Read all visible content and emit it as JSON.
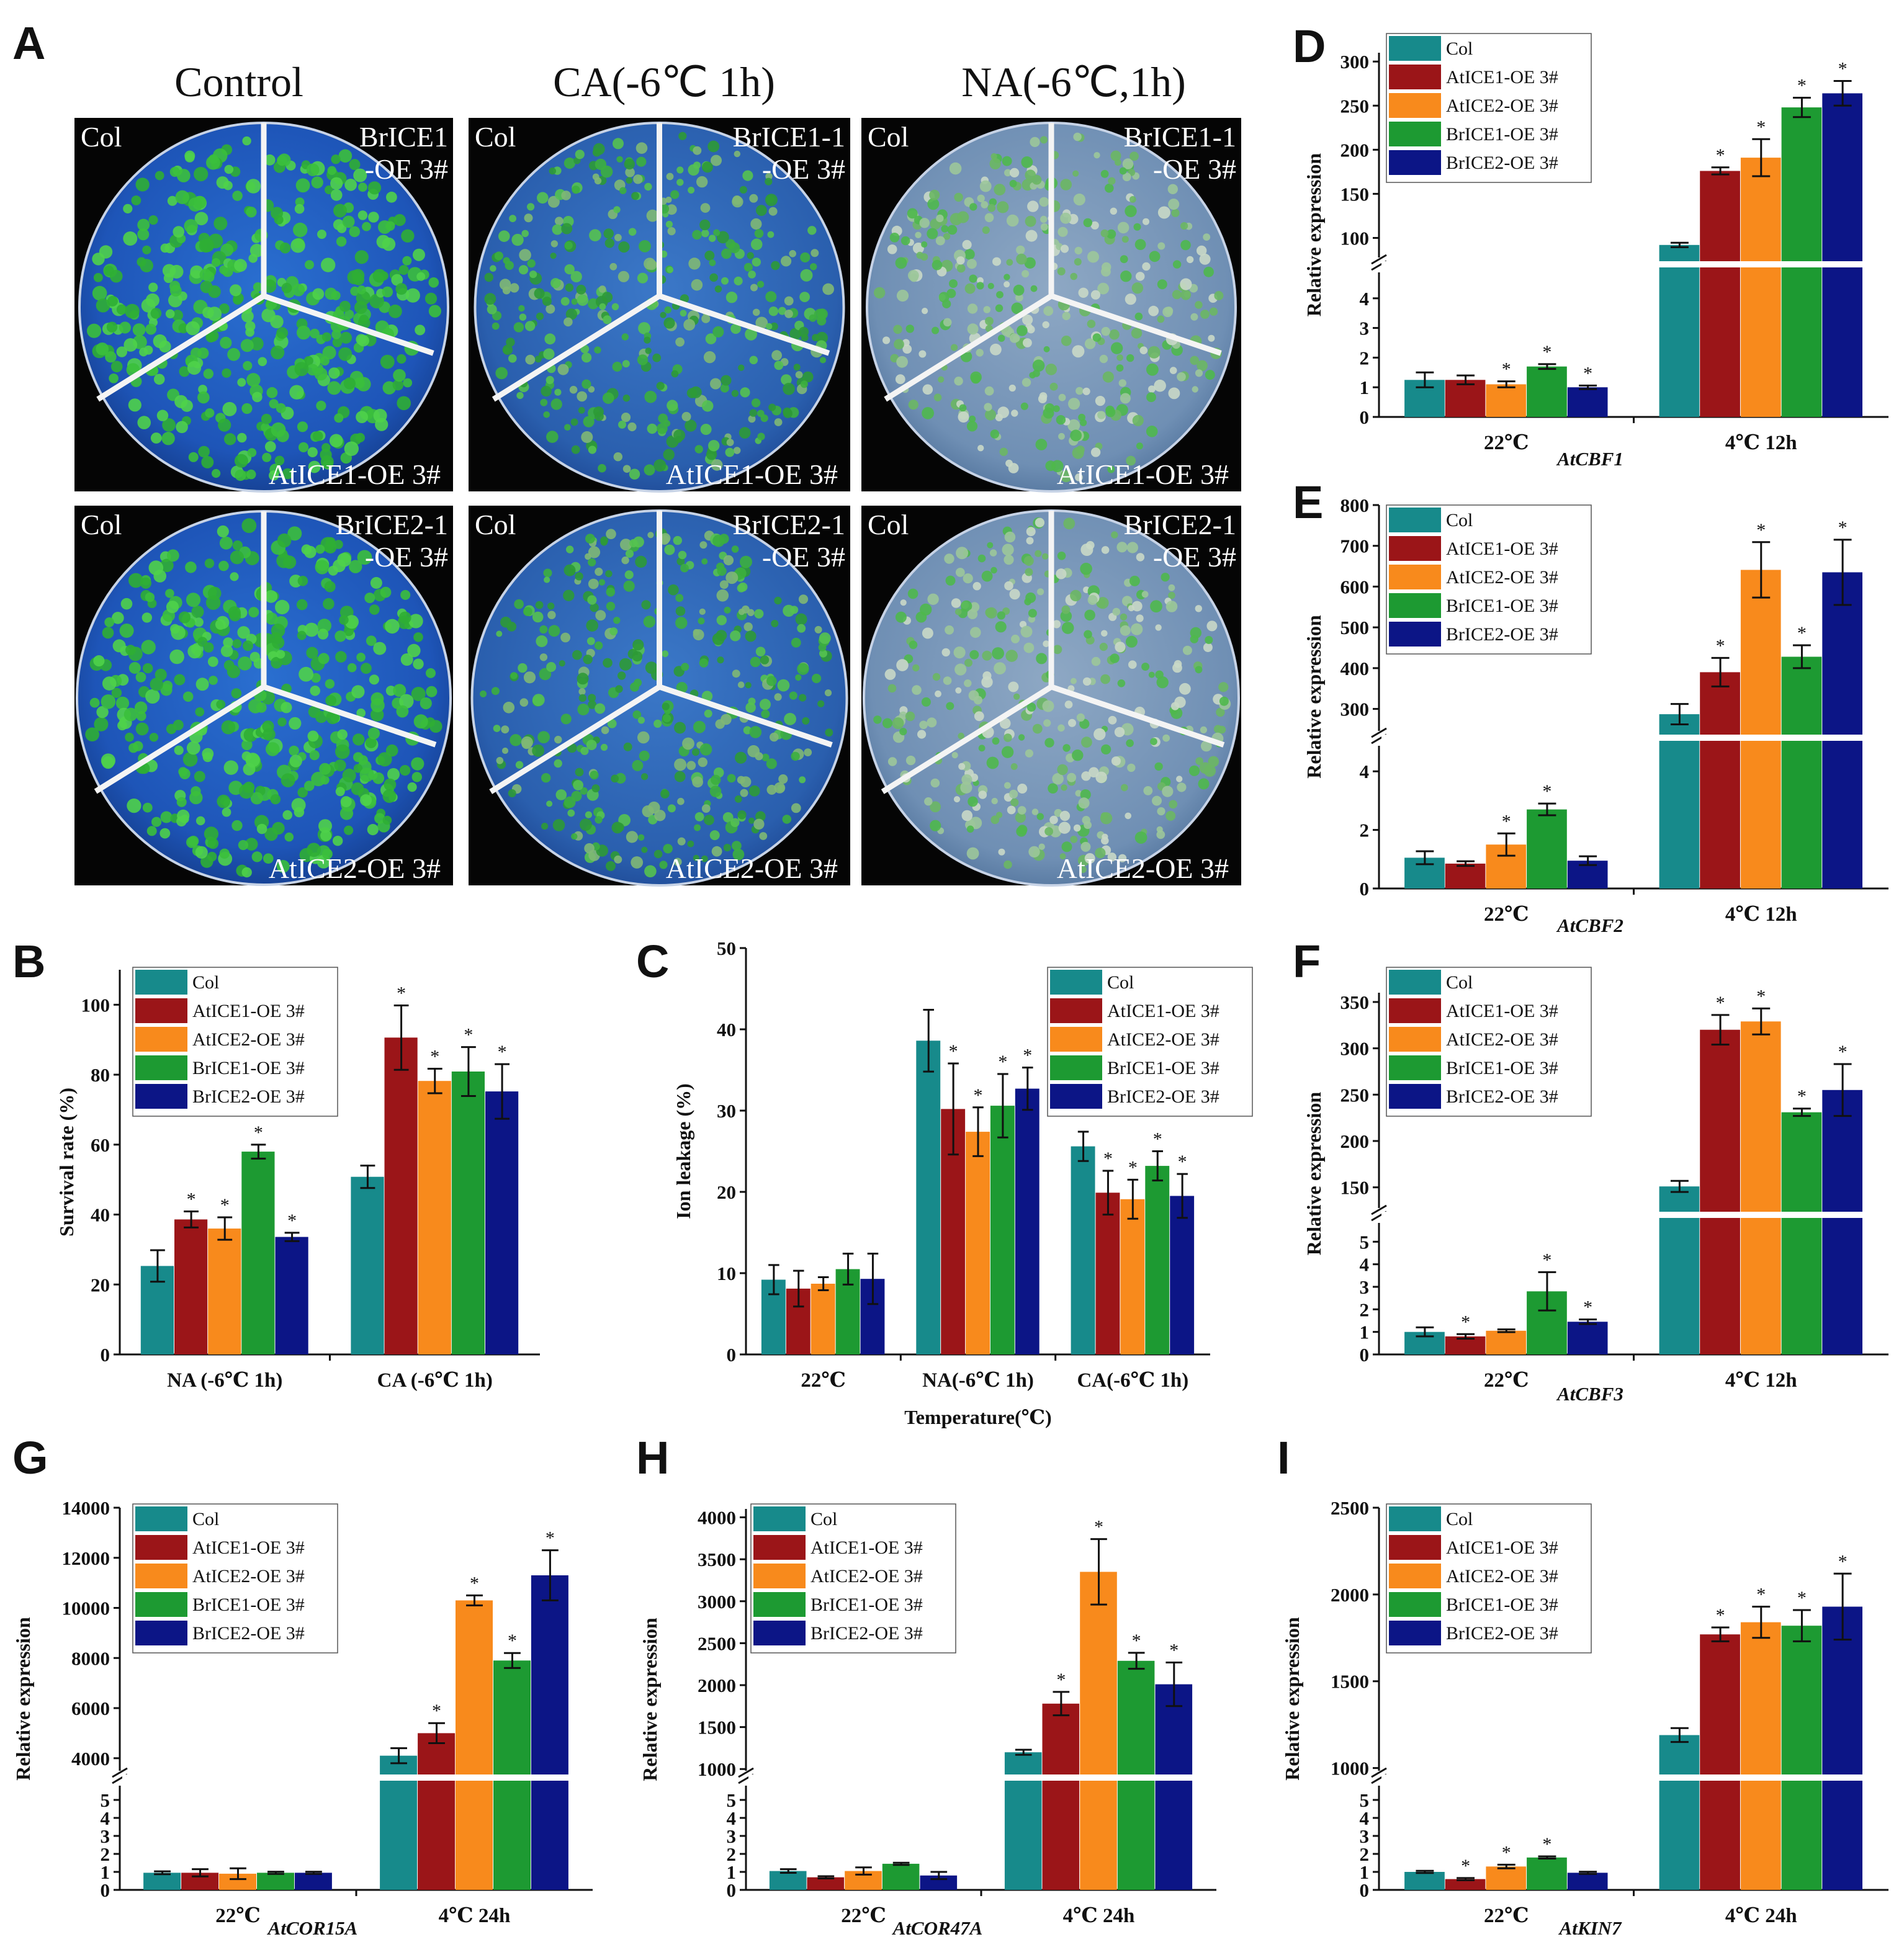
{
  "colors": {
    "Col": "#178a8b",
    "AtICE1-OE 3#": "#9b1518",
    "AtICE2-OE 3#": "#f88a1c",
    "BrICE1-OE 3#": "#1d9a32",
    "BrICE2-OE 3#": "#0c1586"
  },
  "photos": {
    "letter": "A",
    "titles": [
      "Control",
      "CA(-6℃ 1h)",
      "NA(-6℃,1h)"
    ],
    "plates": [
      {
        "tl": "Col",
        "tr1": "BrICE1",
        "tr2": "-OE 3#",
        "bottom": "AtICE1-OE 3#",
        "style": "control"
      },
      {
        "tl": "Col",
        "tr1": "BrICE1-1",
        "tr2": "-OE 3#",
        "bottom": "AtICE1-OE 3#",
        "style": "ca"
      },
      {
        "tl": "Col",
        "tr1": "BrICE1-1",
        "tr2": "-OE 3#",
        "bottom": "AtICE1-OE 3#",
        "style": "na"
      },
      {
        "tl": "Col",
        "tr1": "BrICE2-1",
        "tr2": "-OE 3#",
        "bottom": "AtICE2-OE 3#",
        "style": "control"
      },
      {
        "tl": "Col",
        "tr1": "BrICE2-1",
        "tr2": "-OE 3#",
        "bottom": "AtICE2-OE 3#",
        "style": "ca"
      },
      {
        "tl": "Col",
        "tr1": "BrICE2-1",
        "tr2": "-OE 3#",
        "bottom": "AtICE2-OE 3#",
        "style": "na"
      }
    ]
  },
  "chart_data": [
    {
      "panel": "B",
      "type": "bar",
      "ylabel": "Survival rate (%)",
      "xlabel": "",
      "categories": [
        "NA (-6℃ 1h)",
        "CA (-6℃ 1h)"
      ],
      "ylim": [
        0,
        110
      ],
      "yticks": [
        0,
        20,
        40,
        60,
        80,
        100
      ],
      "series": [
        {
          "name": "Col",
          "values": [
            25.3,
            50.8
          ],
          "errors": [
            4.5,
            3.2
          ],
          "sig": [
            false,
            false
          ]
        },
        {
          "name": "AtICE1-OE 3#",
          "values": [
            38.6,
            90.6
          ],
          "errors": [
            2.3,
            9.2
          ],
          "sig": [
            true,
            true
          ]
        },
        {
          "name": "AtICE2-OE 3#",
          "values": [
            36.0,
            78.2
          ],
          "errors": [
            3.2,
            3.5
          ],
          "sig": [
            true,
            true
          ]
        },
        {
          "name": "BrICE1-OE 3#",
          "values": [
            58.0,
            80.9
          ],
          "errors": [
            2.0,
            7.0
          ],
          "sig": [
            true,
            true
          ]
        },
        {
          "name": "BrICE2-OE 3#",
          "values": [
            33.6,
            75.2
          ],
          "errors": [
            1.2,
            7.8
          ],
          "sig": [
            true,
            true
          ]
        }
      ]
    },
    {
      "panel": "C",
      "type": "bar",
      "ylabel": "Ion leakage (%)",
      "xlabel": "Temperature(℃)",
      "categories": [
        "22℃",
        "NA(-6℃ 1h)",
        "CA(-6℃ 1h)"
      ],
      "ylim": [
        0,
        50
      ],
      "yticks": [
        0,
        10,
        20,
        30,
        40,
        50
      ],
      "series": [
        {
          "name": "Col",
          "values": [
            9.2,
            38.6,
            25.6
          ],
          "errors": [
            1.8,
            3.8,
            1.8
          ],
          "sig": [
            false,
            false,
            false
          ]
        },
        {
          "name": "AtICE1-OE 3#",
          "values": [
            8.1,
            30.2,
            19.9
          ],
          "errors": [
            2.2,
            5.6,
            2.7
          ],
          "sig": [
            false,
            true,
            true
          ]
        },
        {
          "name": "AtICE2-OE 3#",
          "values": [
            8.7,
            27.4,
            19.1
          ],
          "errors": [
            0.8,
            3.0,
            2.4
          ],
          "sig": [
            false,
            true,
            true
          ]
        },
        {
          "name": "BrICE1-OE 3#",
          "values": [
            10.5,
            30.6,
            23.2
          ],
          "errors": [
            1.9,
            3.9,
            1.8
          ],
          "sig": [
            false,
            true,
            true
          ]
        },
        {
          "name": "BrICE2-OE 3#",
          "values": [
            9.3,
            32.7,
            19.5
          ],
          "errors": [
            3.1,
            2.6,
            2.7
          ],
          "sig": [
            false,
            true,
            true
          ]
        }
      ]
    },
    {
      "panel": "D",
      "type": "bar",
      "gene": "AtCBF1",
      "ylabel": "Relative expression",
      "xlabel": "",
      "categories": [
        "22℃",
        "4℃ 12h"
      ],
      "lower_ylim": [
        0,
        5
      ],
      "lower_ticks": [
        0,
        1,
        2,
        3,
        4
      ],
      "upper_ylim": [
        75,
        310
      ],
      "upper_ticks": [
        100,
        150,
        200,
        250,
        300
      ],
      "series": [
        {
          "name": "Col",
          "values": [
            1.25,
            92
          ],
          "errors": [
            0.25,
            2.5
          ],
          "sig": [
            false,
            false
          ]
        },
        {
          "name": "AtICE1-OE 3#",
          "values": [
            1.25,
            176
          ],
          "errors": [
            0.15,
            4
          ],
          "sig": [
            false,
            true
          ]
        },
        {
          "name": "AtICE2-OE 3#",
          "values": [
            1.1,
            191
          ],
          "errors": [
            0.1,
            21
          ],
          "sig": [
            true,
            true
          ]
        },
        {
          "name": "BrICE1-OE 3#",
          "values": [
            1.7,
            248
          ],
          "errors": [
            0.08,
            11
          ],
          "sig": [
            true,
            true
          ]
        },
        {
          "name": "BrICE2-OE 3#",
          "values": [
            1.0,
            264
          ],
          "errors": [
            0.06,
            14
          ],
          "sig": [
            true,
            true
          ]
        }
      ]
    },
    {
      "panel": "E",
      "type": "bar",
      "gene": "AtCBF2",
      "ylabel": "Relative expression",
      "xlabel": "",
      "categories": [
        "22℃",
        "4℃ 12h"
      ],
      "lower_ylim": [
        0,
        5
      ],
      "lower_ticks": [
        0,
        2,
        4
      ],
      "upper_ylim": [
        240,
        800
      ],
      "upper_ticks": [
        300,
        400,
        500,
        600,
        700,
        800
      ],
      "series": [
        {
          "name": "Col",
          "values": [
            1.05,
            287
          ],
          "errors": [
            0.22,
            25
          ],
          "sig": [
            false,
            false
          ]
        },
        {
          "name": "AtICE1-OE 3#",
          "values": [
            0.85,
            390
          ],
          "errors": [
            0.08,
            35
          ],
          "sig": [
            false,
            true
          ]
        },
        {
          "name": "AtICE2-OE 3#",
          "values": [
            1.5,
            641
          ],
          "errors": [
            0.38,
            68
          ],
          "sig": [
            true,
            true
          ]
        },
        {
          "name": "BrICE1-OE 3#",
          "values": [
            2.7,
            428
          ],
          "errors": [
            0.2,
            28
          ],
          "sig": [
            true,
            true
          ]
        },
        {
          "name": "BrICE2-OE 3#",
          "values": [
            0.95,
            635
          ],
          "errors": [
            0.15,
            80
          ],
          "sig": [
            false,
            true
          ]
        }
      ]
    },
    {
      "panel": "F",
      "type": "bar",
      "gene": "AtCBF3",
      "ylabel": "Relative expression",
      "xlabel": "",
      "categories": [
        "22℃",
        "4℃ 12h"
      ],
      "lower_ylim": [
        0,
        6
      ],
      "lower_ticks": [
        0,
        1,
        2,
        3,
        4,
        5
      ],
      "upper_ylim": [
        125,
        360
      ],
      "upper_ticks": [
        150,
        200,
        250,
        300,
        350
      ],
      "series": [
        {
          "name": "Col",
          "values": [
            1.0,
            151
          ],
          "errors": [
            0.2,
            6
          ],
          "sig": [
            false,
            false
          ]
        },
        {
          "name": "AtICE1-OE 3#",
          "values": [
            0.8,
            320
          ],
          "errors": [
            0.1,
            16
          ],
          "sig": [
            true,
            true
          ]
        },
        {
          "name": "AtICE2-OE 3#",
          "values": [
            1.05,
            329
          ],
          "errors": [
            0.06,
            14
          ],
          "sig": [
            false,
            true
          ]
        },
        {
          "name": "BrICE1-OE 3#",
          "values": [
            2.8,
            231
          ],
          "errors": [
            0.85,
            4
          ],
          "sig": [
            true,
            true
          ]
        },
        {
          "name": "BrICE2-OE 3#",
          "values": [
            1.45,
            255
          ],
          "errors": [
            0.1,
            28
          ],
          "sig": [
            true,
            true
          ]
        }
      ]
    },
    {
      "panel": "G",
      "type": "bar",
      "gene": "AtCOR15A",
      "ylabel": "Relative expression",
      "xlabel": "",
      "categories": [
        "22℃",
        "4℃ 24h"
      ],
      "lower_ylim": [
        0,
        6
      ],
      "lower_ticks": [
        0,
        1,
        2,
        3,
        4,
        5
      ],
      "upper_ylim": [
        3400,
        14000
      ],
      "upper_ticks": [
        4000,
        6000,
        8000,
        10000,
        12000,
        14000
      ],
      "series": [
        {
          "name": "Col",
          "values": [
            0.95,
            4100
          ],
          "errors": [
            0.08,
            300
          ],
          "sig": [
            false,
            false
          ]
        },
        {
          "name": "AtICE1-OE 3#",
          "values": [
            0.95,
            5000
          ],
          "errors": [
            0.2,
            400
          ],
          "sig": [
            false,
            true
          ]
        },
        {
          "name": "AtICE2-OE 3#",
          "values": [
            0.9,
            10300
          ],
          "errors": [
            0.3,
            200
          ],
          "sig": [
            false,
            true
          ]
        },
        {
          "name": "BrICE1-OE 3#",
          "values": [
            0.95,
            7900
          ],
          "errors": [
            0.06,
            300
          ],
          "sig": [
            false,
            true
          ]
        },
        {
          "name": "BrICE2-OE 3#",
          "values": [
            0.95,
            11300
          ],
          "errors": [
            0.06,
            1000
          ],
          "sig": [
            false,
            true
          ]
        }
      ]
    },
    {
      "panel": "H",
      "type": "bar",
      "gene": "AtCOR47A",
      "ylabel": "Relative expression",
      "xlabel": "",
      "categories": [
        "22℃",
        "4℃ 24h"
      ],
      "lower_ylim": [
        0,
        6
      ],
      "lower_ticks": [
        0,
        1,
        2,
        3,
        4,
        5
      ],
      "upper_ylim": [
        950,
        4100
      ],
      "upper_ticks": [
        1000,
        1500,
        2000,
        2500,
        3000,
        3500,
        4000
      ],
      "series": [
        {
          "name": "Col",
          "values": [
            1.05,
            1200
          ],
          "errors": [
            0.1,
            30
          ],
          "sig": [
            false,
            false
          ]
        },
        {
          "name": "AtICE1-OE 3#",
          "values": [
            0.7,
            1780
          ],
          "errors": [
            0.06,
            140
          ],
          "sig": [
            false,
            true
          ]
        },
        {
          "name": "AtICE2-OE 3#",
          "values": [
            1.05,
            3350
          ],
          "errors": [
            0.2,
            390
          ],
          "sig": [
            false,
            true
          ]
        },
        {
          "name": "BrICE1-OE 3#",
          "values": [
            1.45,
            2290
          ],
          "errors": [
            0.06,
            95
          ],
          "sig": [
            false,
            true
          ]
        },
        {
          "name": "BrICE2-OE 3#",
          "values": [
            0.8,
            2010
          ],
          "errors": [
            0.2,
            260
          ],
          "sig": [
            false,
            true
          ]
        }
      ]
    },
    {
      "panel": "I",
      "type": "bar",
      "gene": "AtKIN7",
      "ylabel": "Relative expression",
      "xlabel": "",
      "categories": [
        "22℃",
        "4℃ 24h"
      ],
      "lower_ylim": [
        0,
        6
      ],
      "lower_ticks": [
        0,
        1,
        2,
        3,
        4,
        5
      ],
      "upper_ylim": [
        970,
        2500
      ],
      "upper_ticks": [
        1000,
        1500,
        2000,
        2500
      ],
      "series": [
        {
          "name": "Col",
          "values": [
            1.0,
            1190
          ],
          "errors": [
            0.06,
            40
          ],
          "sig": [
            false,
            false
          ]
        },
        {
          "name": "AtICE1-OE 3#",
          "values": [
            0.6,
            1770
          ],
          "errors": [
            0.06,
            40
          ],
          "sig": [
            true,
            true
          ]
        },
        {
          "name": "AtICE2-OE 3#",
          "values": [
            1.3,
            1840
          ],
          "errors": [
            0.1,
            90
          ],
          "sig": [
            true,
            true
          ]
        },
        {
          "name": "BrICE1-OE 3#",
          "values": [
            1.8,
            1820
          ],
          "errors": [
            0.06,
            90
          ],
          "sig": [
            true,
            true
          ]
        },
        {
          "name": "BrICE2-OE 3#",
          "values": [
            0.95,
            1930
          ],
          "errors": [
            0.06,
            190
          ],
          "sig": [
            false,
            true
          ]
        }
      ]
    }
  ]
}
